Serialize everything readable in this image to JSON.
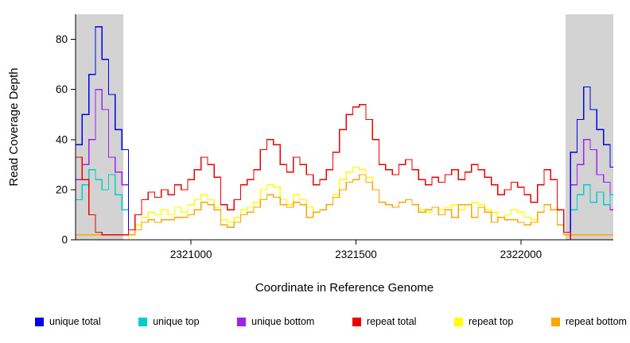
{
  "chart_data": {
    "type": "line",
    "title": "",
    "xlabel": "Coordinate in Reference Genome",
    "ylabel": "Read Coverage Depth",
    "xlim": [
      2320650,
      2322280
    ],
    "ylim": [
      0,
      90
    ],
    "x_ticks": [
      2321000,
      2321500,
      2322000
    ],
    "y_ticks": [
      0,
      20,
      40,
      60,
      80
    ],
    "x_start": 2320650,
    "x_step": 20,
    "grid": false,
    "legend_position": "bottom",
    "shade_color": "#d3d3d3",
    "shaded_regions": [
      {
        "from": 2320650,
        "to": 2320795
      },
      {
        "from": 2322135,
        "to": 2322280
      }
    ],
    "series": [
      {
        "name": "unique total",
        "color": "#0000ee",
        "values": [
          38,
          50,
          66,
          85,
          72,
          58,
          44,
          36,
          0,
          0,
          0,
          0,
          0,
          0,
          0,
          0,
          0,
          0,
          0,
          0,
          0,
          0,
          0,
          0,
          0,
          0,
          0,
          0,
          0,
          0,
          0,
          0,
          0,
          0,
          0,
          0,
          0,
          0,
          0,
          0,
          0,
          0,
          0,
          0,
          0,
          0,
          0,
          0,
          0,
          0,
          0,
          0,
          0,
          0,
          0,
          0,
          0,
          0,
          0,
          0,
          0,
          0,
          0,
          0,
          0,
          0,
          0,
          0,
          0,
          0,
          0,
          0,
          0,
          0,
          0,
          35,
          48,
          61,
          52,
          44,
          38,
          29
        ]
      },
      {
        "name": "unique top",
        "color": "#00cdcd",
        "values": [
          16,
          22,
          28,
          24,
          20,
          26,
          18,
          12,
          0,
          0,
          0,
          0,
          0,
          0,
          0,
          0,
          0,
          0,
          0,
          0,
          0,
          0,
          0,
          0,
          0,
          0,
          0,
          0,
          0,
          0,
          0,
          0,
          0,
          0,
          0,
          0,
          0,
          0,
          0,
          0,
          0,
          0,
          0,
          0,
          0,
          0,
          0,
          0,
          0,
          0,
          0,
          0,
          0,
          0,
          0,
          0,
          0,
          0,
          0,
          0,
          0,
          0,
          0,
          0,
          0,
          0,
          0,
          0,
          0,
          0,
          0,
          0,
          0,
          0,
          0,
          12,
          18,
          22,
          15,
          19,
          14,
          18
        ]
      },
      {
        "name": "unique bottom",
        "color": "#a020f0",
        "values": [
          24,
          30,
          40,
          60,
          52,
          33,
          27,
          22,
          0,
          0,
          0,
          0,
          0,
          0,
          0,
          0,
          0,
          0,
          0,
          0,
          0,
          0,
          0,
          0,
          0,
          0,
          0,
          0,
          0,
          0,
          0,
          0,
          0,
          0,
          0,
          0,
          0,
          0,
          0,
          0,
          0,
          0,
          0,
          0,
          0,
          0,
          0,
          0,
          0,
          0,
          0,
          0,
          0,
          0,
          0,
          0,
          0,
          0,
          0,
          0,
          0,
          0,
          0,
          0,
          0,
          0,
          0,
          0,
          0,
          0,
          0,
          0,
          0,
          0,
          0,
          22,
          30,
          40,
          36,
          26,
          23,
          12
        ]
      },
      {
        "name": "repeat total",
        "color": "#ee0000",
        "values": [
          33,
          24,
          10,
          3,
          2,
          2,
          2,
          2,
          4,
          10,
          16,
          19,
          17,
          20,
          18,
          22,
          20,
          24,
          28,
          33,
          30,
          25,
          14,
          12,
          16,
          22,
          24,
          28,
          36,
          40,
          38,
          30,
          27,
          33,
          30,
          26,
          22,
          24,
          28,
          35,
          44,
          50,
          53,
          54,
          48,
          40,
          30,
          28,
          26,
          30,
          32,
          28,
          24,
          22,
          25,
          23,
          26,
          28,
          24,
          27,
          30,
          28,
          25,
          22,
          18,
          20,
          23,
          21,
          18,
          15,
          22,
          28,
          24,
          12,
          3,
          0,
          0,
          0,
          0,
          0,
          0,
          0
        ]
      },
      {
        "name": "repeat top",
        "color": "#ffff00",
        "values": [
          0,
          0,
          0,
          0,
          0,
          0,
          0,
          0,
          2,
          6,
          9,
          11,
          10,
          12,
          10,
          13,
          11,
          14,
          16,
          18,
          16,
          13,
          8,
          7,
          9,
          12,
          13,
          15,
          20,
          22,
          21,
          16,
          14,
          18,
          16,
          13,
          11,
          12,
          14,
          18,
          24,
          27,
          29,
          28,
          25,
          20,
          15,
          14,
          13,
          15,
          16,
          14,
          12,
          11,
          13,
          12,
          13,
          14,
          12,
          14,
          15,
          14,
          12,
          11,
          9,
          10,
          12,
          11,
          9,
          8,
          11,
          14,
          12,
          6,
          2,
          0,
          0,
          0,
          0,
          0,
          0,
          0
        ]
      },
      {
        "name": "repeat bottom",
        "color": "#ffa500",
        "values": [
          2,
          2,
          2,
          2,
          2,
          2,
          2,
          2,
          2,
          4,
          7,
          8,
          7,
          8,
          8,
          9,
          9,
          10,
          12,
          15,
          14,
          12,
          6,
          5,
          7,
          10,
          11,
          13,
          16,
          18,
          17,
          14,
          13,
          15,
          14,
          9,
          11,
          12,
          14,
          17,
          20,
          23,
          24,
          26,
          23,
          20,
          15,
          14,
          13,
          15,
          16,
          14,
          11,
          12,
          13,
          10,
          12,
          9,
          14,
          14,
          9,
          13,
          11,
          7,
          9,
          8,
          8,
          7,
          6,
          7,
          11,
          14,
          12,
          6,
          2,
          2,
          2,
          2,
          2,
          2,
          2,
          2
        ]
      }
    ]
  }
}
